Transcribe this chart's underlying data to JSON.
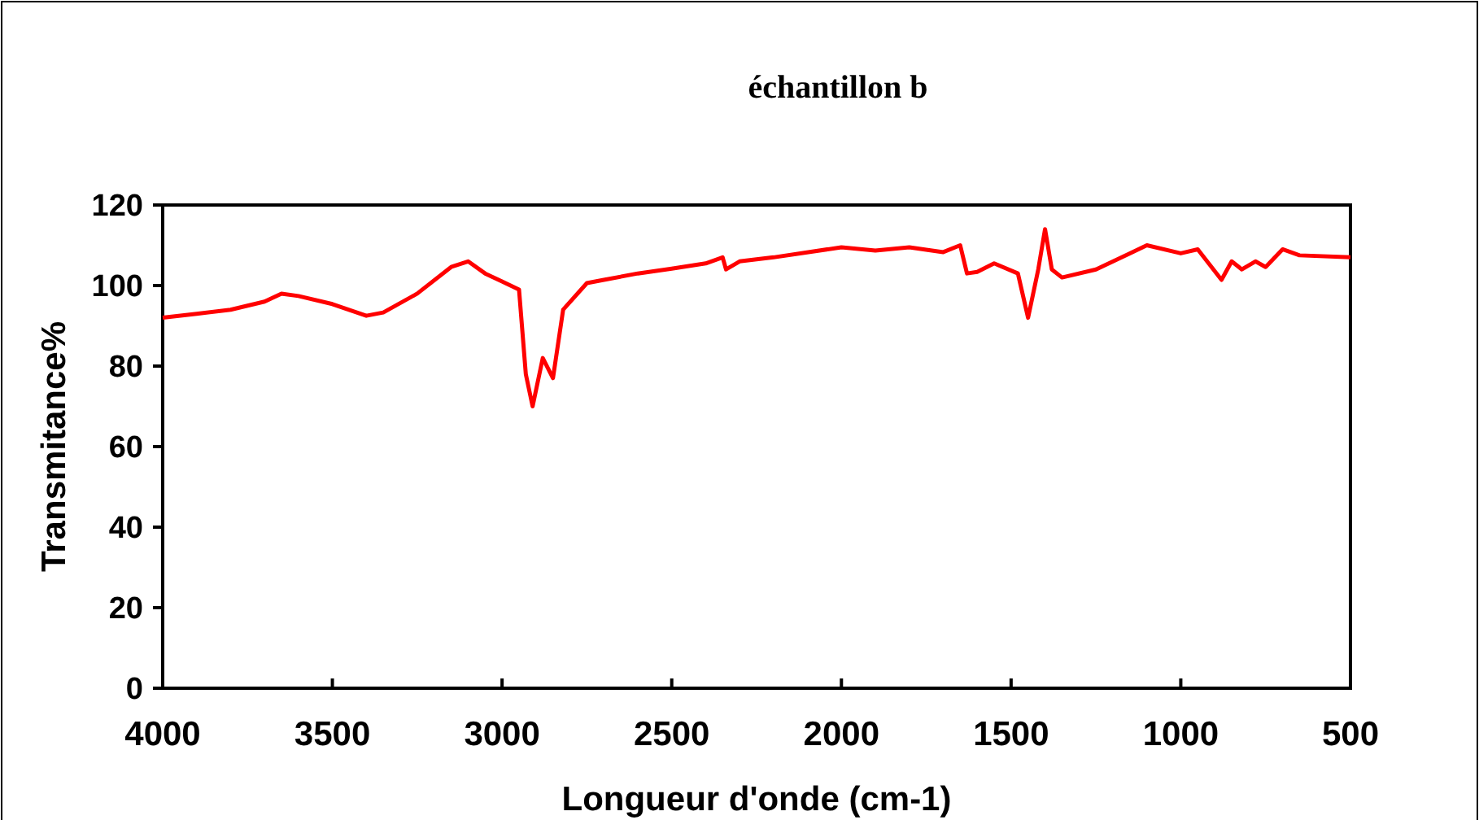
{
  "chart_data": {
    "type": "line",
    "title": "échantillon b",
    "xlabel": "Longueur d'onde (cm-1)",
    "ylabel": "Transmitance%",
    "xlim": [
      4000,
      500
    ],
    "xticks": [
      4000,
      3500,
      3000,
      2500,
      2000,
      1500,
      1000,
      500
    ],
    "ylim": [
      0,
      120
    ],
    "yticks": [
      0,
      20,
      40,
      60,
      80,
      100,
      120
    ],
    "grid": false,
    "marker": "none",
    "line_style": "solid",
    "series": [
      {
        "color": "#ff0000",
        "x": [
          4000,
          3900,
          3800,
          3700,
          3650,
          3600,
          3500,
          3400,
          3350,
          3250,
          3150,
          3100,
          3050,
          3000,
          2950,
          2930,
          2910,
          2880,
          2850,
          2820,
          2750,
          2700,
          2600,
          2500,
          2400,
          2350,
          2340,
          2300,
          2200,
          2000,
          1900,
          1800,
          1700,
          1650,
          1630,
          1600,
          1550,
          1480,
          1450,
          1420,
          1400,
          1380,
          1350,
          1250,
          1150,
          1100,
          1000,
          950,
          880,
          850,
          820,
          780,
          750,
          700,
          650,
          500
        ],
        "values": [
          92,
          93,
          94,
          96,
          98,
          97.4,
          95.4,
          92.5,
          93.3,
          98,
          104.6,
          106,
          103,
          101,
          99,
          78,
          70,
          82,
          77,
          94,
          100.6,
          101.4,
          103,
          104.2,
          105.5,
          107,
          104,
          106,
          107,
          109.5,
          108.7,
          109.5,
          108.3,
          110,
          103,
          103.4,
          105.5,
          103,
          92,
          104,
          114,
          104,
          102,
          104,
          108,
          110,
          108,
          109,
          101.4,
          106,
          104,
          106,
          104.6,
          109,
          107.5,
          107
        ]
      }
    ]
  }
}
